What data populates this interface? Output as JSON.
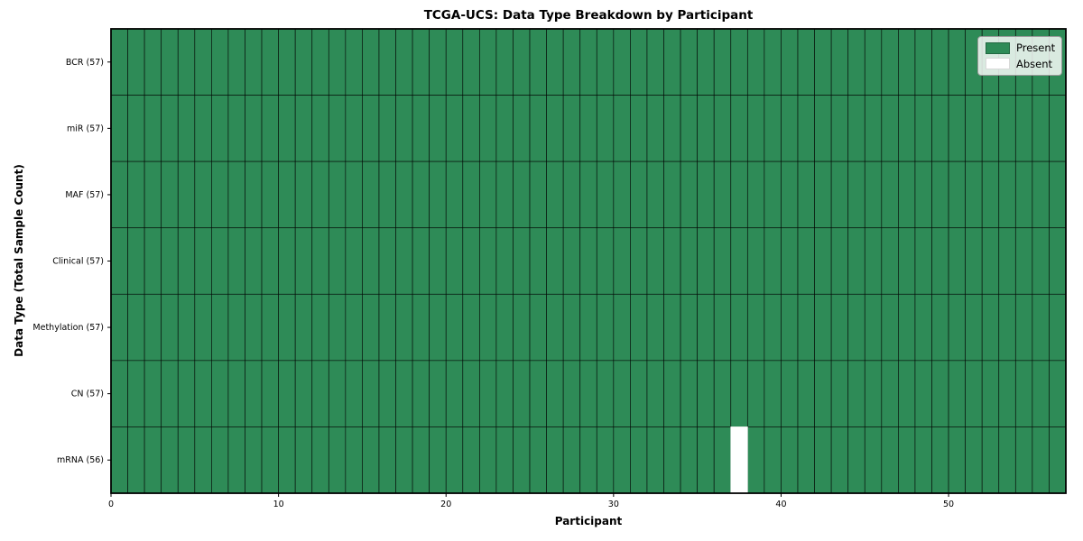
{
  "chart_data": {
    "type": "heatmap",
    "title": "TCGA-UCS: Data Type Breakdown by Participant",
    "xlabel": "Participant",
    "ylabel": "Data Type (Total Sample Count)",
    "n_participants": 57,
    "xlim": [
      0,
      57
    ],
    "xticks": [
      0,
      10,
      20,
      30,
      40,
      50
    ],
    "rows": [
      {
        "label": "BCR (57)",
        "present_count": 57,
        "absent_participants": []
      },
      {
        "label": "miR (57)",
        "present_count": 57,
        "absent_participants": []
      },
      {
        "label": "MAF (57)",
        "present_count": 57,
        "absent_participants": []
      },
      {
        "label": "Clinical (57)",
        "present_count": 57,
        "absent_participants": []
      },
      {
        "label": "Methylation (57)",
        "present_count": 57,
        "absent_participants": []
      },
      {
        "label": "CN (57)",
        "present_count": 57,
        "absent_participants": []
      },
      {
        "label": "mRNA (56)",
        "present_count": 56,
        "absent_participants": [
          37
        ]
      }
    ],
    "legend": {
      "position": "upper right",
      "entries": [
        {
          "label": "Present",
          "color": "#2e8b57"
        },
        {
          "label": "Absent",
          "color": "#ffffff"
        }
      ]
    },
    "colors": {
      "present": "#2e8b57",
      "absent": "#ffffff",
      "cell_edge": "#000000",
      "spine": "#000000",
      "background": "#ffffff"
    },
    "grid": false
  }
}
